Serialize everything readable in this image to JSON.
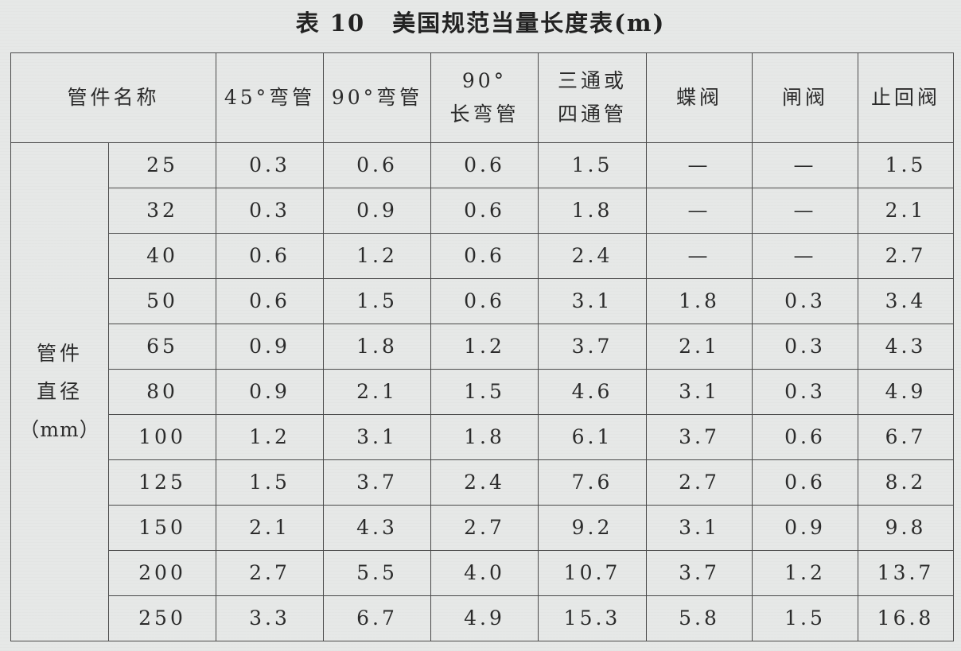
{
  "caption": {
    "number": "表 10",
    "title": "美国规范当量长度表(m)"
  },
  "header": {
    "fitting_name": "管件名称",
    "columns": [
      {
        "line1": "45°弯管",
        "line2": ""
      },
      {
        "line1": "90°弯管",
        "line2": ""
      },
      {
        "line1": "90°",
        "line2": "长弯管"
      },
      {
        "line1": "三通或",
        "line2": "四通管"
      },
      {
        "line1": "蝶阀",
        "line2": ""
      },
      {
        "line1": "闸阀",
        "line2": ""
      },
      {
        "line1": "止回阀",
        "line2": ""
      }
    ]
  },
  "row_header": {
    "line1": "管件",
    "line2": "直径",
    "line3": "（mm）"
  },
  "rows": [
    {
      "diameter": "25",
      "values": [
        "0.3",
        "0.6",
        "0.6",
        "1.5",
        "—",
        "—",
        "1.5"
      ]
    },
    {
      "diameter": "32",
      "values": [
        "0.3",
        "0.9",
        "0.6",
        "1.8",
        "—",
        "—",
        "2.1"
      ]
    },
    {
      "diameter": "40",
      "values": [
        "0.6",
        "1.2",
        "0.6",
        "2.4",
        "—",
        "—",
        "2.7"
      ]
    },
    {
      "diameter": "50",
      "values": [
        "0.6",
        "1.5",
        "0.6",
        "3.1",
        "1.8",
        "0.3",
        "3.4"
      ]
    },
    {
      "diameter": "65",
      "values": [
        "0.9",
        "1.8",
        "1.2",
        "3.7",
        "2.1",
        "0.3",
        "4.3"
      ]
    },
    {
      "diameter": "80",
      "values": [
        "0.9",
        "2.1",
        "1.5",
        "4.6",
        "3.1",
        "0.3",
        "4.9"
      ]
    },
    {
      "diameter": "100",
      "values": [
        "1.2",
        "3.1",
        "1.8",
        "6.1",
        "3.7",
        "0.6",
        "6.7"
      ]
    },
    {
      "diameter": "125",
      "values": [
        "1.5",
        "3.7",
        "2.4",
        "7.6",
        "2.7",
        "0.6",
        "8.2"
      ]
    },
    {
      "diameter": "150",
      "values": [
        "2.1",
        "4.3",
        "2.7",
        "9.2",
        "3.1",
        "0.9",
        "9.8"
      ]
    },
    {
      "diameter": "200",
      "values": [
        "2.7",
        "5.5",
        "4.0",
        "10.7",
        "3.7",
        "1.2",
        "13.7"
      ]
    },
    {
      "diameter": "250",
      "values": [
        "3.3",
        "6.7",
        "4.9",
        "15.3",
        "5.8",
        "1.5",
        "16.8"
      ]
    }
  ]
}
